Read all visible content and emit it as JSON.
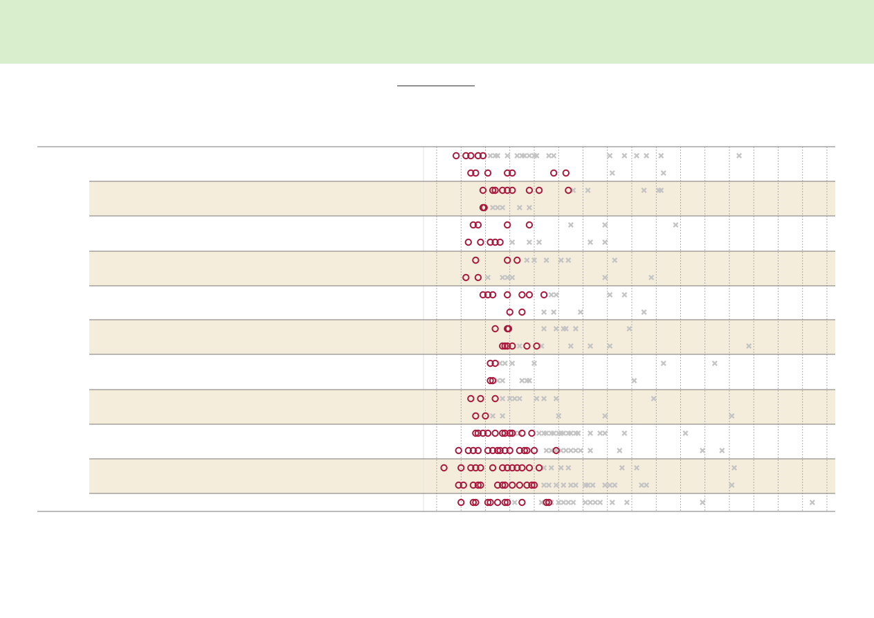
{
  "chart_data": {
    "type": "dot",
    "xlim": [
      0,
      17
    ],
    "xticks": [
      1,
      2,
      3,
      4,
      5,
      6,
      7,
      8,
      9,
      10,
      11,
      12,
      13,
      14,
      15,
      16,
      17
    ],
    "grid": true,
    "circle_color": "#a8193d",
    "cross_color": "#c4c4c4",
    "rows": [
      {
        "circles": [
          1.8,
          2.2,
          2.4,
          2.7,
          2.9
        ],
        "crosses": [
          3.2,
          3.4,
          3.5,
          3.9,
          4.3,
          4.5,
          4.6,
          4.8,
          5.0,
          5.1,
          5.6,
          5.8,
          8.1,
          8.7,
          9.2,
          9.6,
          10.2,
          13.4
        ]
      },
      {
        "circles": [
          2.4,
          2.6,
          3.1,
          3.9,
          4.1,
          5.8,
          6.3
        ],
        "crosses": [
          8.2,
          10.3
        ]
      },
      {
        "circles": [
          2.9,
          3.3,
          3.4,
          3.7,
          3.9,
          4.1,
          4.8,
          5.2,
          6.4
        ],
        "crosses": [
          6.6,
          7.2,
          9.5,
          10.1,
          10.2
        ]
      },
      {
        "circles": [
          2.9,
          2.95
        ],
        "crosses": [
          3.3,
          3.5,
          3.7,
          4.4,
          4.8
        ]
      },
      {
        "circles": [
          2.5,
          2.7,
          3.9,
          4.8
        ],
        "crosses": [
          6.5,
          7.9,
          10.8
        ]
      },
      {
        "circles": [
          2.3,
          2.8,
          3.2,
          3.4,
          3.6
        ],
        "crosses": [
          4.1,
          4.8,
          5.2,
          7.3,
          7.9
        ]
      },
      {
        "circles": [
          2.6,
          3.9,
          4.3
        ],
        "crosses": [
          4.7,
          5.0,
          5.5,
          6.1,
          6.4,
          8.3
        ]
      },
      {
        "circles": [
          2.2,
          2.7
        ],
        "crosses": [
          3.1,
          3.7,
          3.9,
          4.1,
          7.9,
          9.8
        ]
      },
      {
        "circles": [
          2.9,
          3.1,
          3.3,
          3.9,
          4.5,
          4.8,
          5.4
        ],
        "crosses": [
          5.7,
          5.9,
          8.1,
          8.7
        ]
      },
      {
        "circles": [
          4.0,
          4.5
        ],
        "crosses": [
          5.4,
          5.8,
          6.9,
          9.5
        ]
      },
      {
        "circles": [
          3.4,
          3.9,
          3.95
        ],
        "crosses": [
          5.4,
          5.9,
          6.2,
          6.3,
          6.7,
          8.9
        ]
      },
      {
        "circles": [
          3.7,
          3.8,
          3.9,
          4.1,
          4.7,
          5.1
        ],
        "crosses": [
          4.4,
          5.3,
          6.5,
          7.3,
          8.1,
          13.8
        ]
      },
      {
        "circles": [
          3.2,
          3.4
        ],
        "crosses": [
          3.6,
          3.8,
          4.1,
          5.0,
          10.3,
          12.4
        ]
      },
      {
        "circles": [
          3.2,
          3.3
        ],
        "crosses": [
          3.5,
          3.7,
          4.5,
          4.7,
          4.8,
          9.1
        ]
      },
      {
        "circles": [
          2.4,
          2.8,
          3.4
        ],
        "crosses": [
          3.7,
          4.0,
          4.2,
          4.4,
          5.1,
          5.4,
          5.9,
          9.9
        ]
      },
      {
        "circles": [
          2.6,
          3.0
        ],
        "crosses": [
          3.3,
          3.7,
          6.0,
          7.9,
          13.1
        ]
      },
      {
        "circles": [
          2.6,
          2.7,
          2.9,
          3.1,
          3.4,
          3.7,
          3.8,
          4.0,
          4.1,
          4.5,
          4.9
        ],
        "crosses": [
          4.2,
          4.4,
          5.2,
          5.4,
          5.5,
          5.7,
          5.8,
          6.0,
          6.1,
          6.2,
          6.4,
          6.5,
          6.7,
          6.8,
          7.3,
          7.7,
          7.9,
          8.7,
          11.2
        ]
      },
      {
        "circles": [
          1.9,
          2.3,
          2.5,
          2.7,
          3.1,
          3.3,
          3.5,
          3.6,
          3.8,
          4.0,
          4.4,
          4.6,
          4.7,
          5.0,
          5.9
        ],
        "crosses": [
          5.5,
          5.7,
          5.9,
          6.1,
          6.3,
          6.5,
          6.7,
          6.9,
          7.3,
          8.5,
          11.9,
          12.7
        ]
      },
      {
        "circles": [
          1.3,
          2.0,
          2.4,
          2.6,
          2.8,
          3.3,
          3.7,
          3.9,
          4.1,
          4.3,
          4.5,
          4.8,
          5.2
        ],
        "crosses": [
          5.4,
          5.7,
          6.1,
          6.4,
          8.6,
          9.2,
          13.2
        ]
      },
      {
        "circles": [
          1.9,
          2.1,
          2.5,
          2.7,
          2.8,
          3.5,
          3.7,
          3.8,
          4.1,
          4.4,
          4.7,
          4.9,
          5.0
        ],
        "crosses": [
          5.4,
          5.6,
          5.9,
          6.2,
          6.5,
          6.7,
          7.1,
          7.2,
          7.4,
          7.9,
          8.1,
          8.3,
          9.4,
          9.6,
          13.1
        ]
      },
      {
        "circles": [
          2.0,
          2.5,
          2.6,
          3.1,
          3.2,
          3.5,
          3.8,
          3.9,
          4.5,
          5.5,
          5.6
        ],
        "crosses": [
          4.2,
          5.3,
          5.5,
          5.7,
          6.0,
          6.2,
          6.4,
          6.6,
          7.1,
          7.3,
          7.5,
          7.7,
          8.2,
          8.8,
          11.9,
          16.4
        ]
      }
    ]
  }
}
